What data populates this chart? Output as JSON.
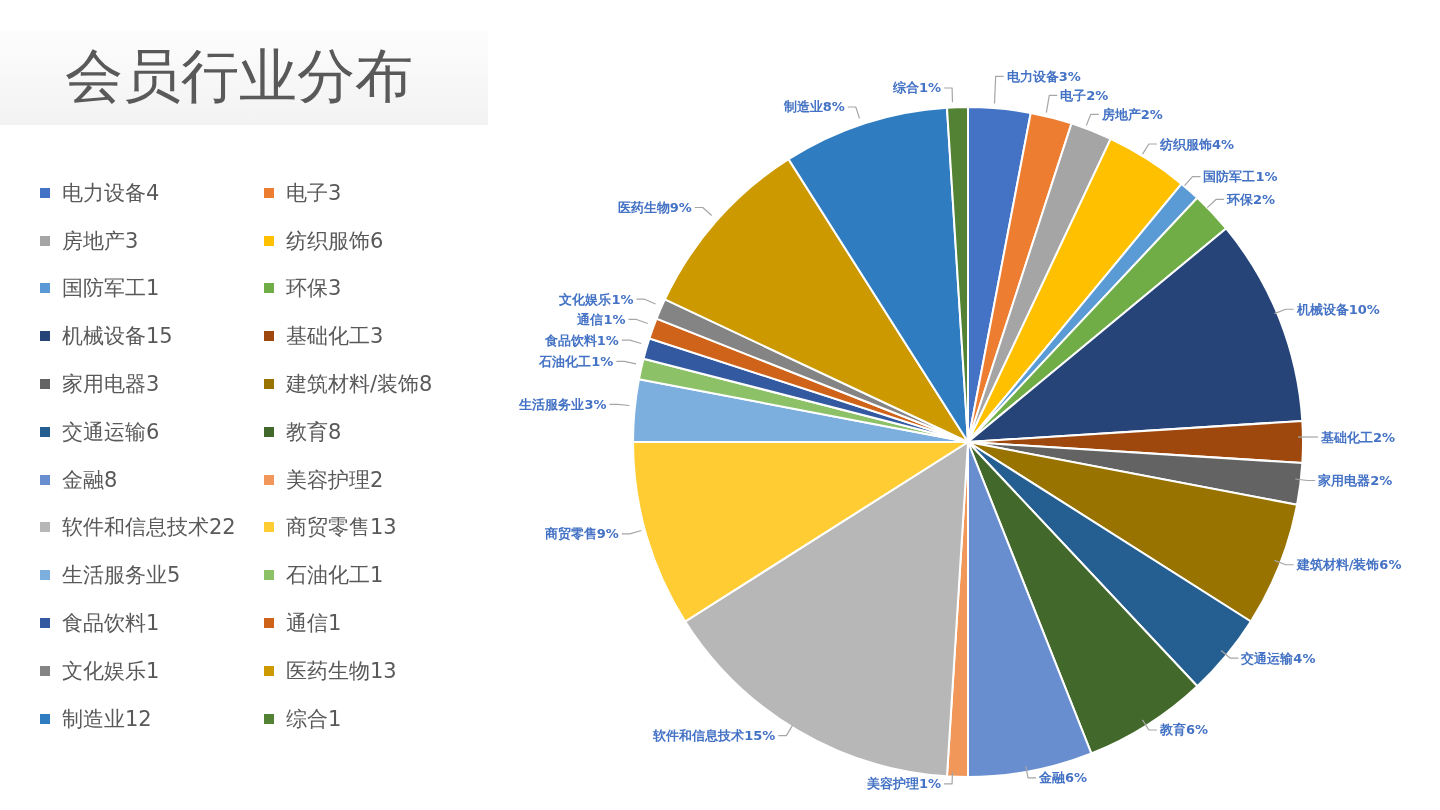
{
  "chart_data": {
    "type": "pie",
    "title": "会员行业分布",
    "categories": [
      "电力设备4",
      "电子3",
      "房地产3",
      "纺织服饰6",
      "国防军工1",
      "环保3",
      "机械设备15",
      "基础化工3",
      "家用电器3",
      "建筑材料/装饰8",
      "交通运输6",
      "教育8",
      "金融8",
      "美容护理2",
      "软件和信息技术22",
      "商贸零售13",
      "生活服务业5",
      "石油化工1",
      "食品饮料1",
      "通信1",
      "文化娱乐1",
      "医药生物13",
      "制造业12",
      "综合1"
    ],
    "values": [
      3,
      2,
      2,
      4,
      1,
      2,
      10,
      2,
      2,
      6,
      4,
      6,
      6,
      1,
      15,
      9,
      3,
      1,
      1,
      1,
      1,
      9,
      8,
      1
    ],
    "colors": [
      "#4472c4",
      "#ed7d31",
      "#a5a5a5",
      "#ffc000",
      "#5b9bd5",
      "#70ad47",
      "#264478",
      "#9e480e",
      "#636363",
      "#997300",
      "#255e91",
      "#43682b",
      "#698ed0",
      "#f1975a",
      "#b7b7b7",
      "#ffcd33",
      "#7cafdd",
      "#8cc168",
      "#335aa1",
      "#d0631a",
      "#848484",
      "#cc9a00",
      "#307cc0",
      "#548235"
    ],
    "value_labels": [
      "电力设备3%",
      "电子2%",
      "房地产2%",
      "纺织服饰4%",
      "国防军工1%",
      "环保2%",
      "机械设备10%",
      "基础化工2%",
      "家用电器2%",
      "建筑材料/装饰6%",
      "交通运输4%",
      "教育6%",
      "金融6%",
      "美容护理1%",
      "软件和信息技术15%",
      "商贸零售9%",
      "生活服务业3%",
      "石油化工1%",
      "食品饮料1%",
      "通信1%",
      "文化娱乐1%",
      "医药生物9%",
      "制造业8%",
      "综合1%"
    ],
    "legend": "left"
  }
}
